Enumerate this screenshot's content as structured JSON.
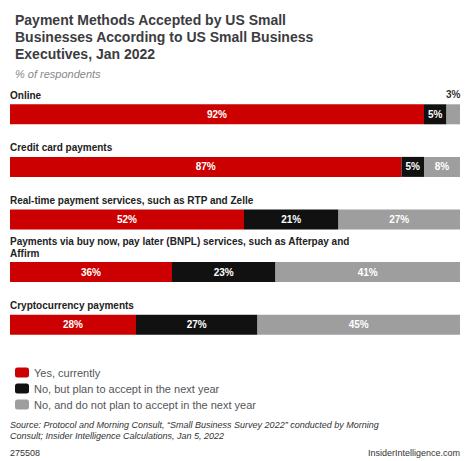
{
  "chart_data": {
    "type": "bar",
    "orientation": "horizontal",
    "stacked": true,
    "title": "Payment Methods Accepted by US Small\nBusinesses According to US Small Business\nExecutives, Jan 2022",
    "subtitle": "% of respondents",
    "categories": [
      "Online",
      "Credit card payments",
      "Real-time payment services, such as RTP and Zelle",
      "Payments via buy now, pay later (BNPL) services, such as Afterpay and\nAffirm",
      "Cryptocurrency payments"
    ],
    "series": [
      {
        "name": "Yes, currently",
        "color": "#cc0000",
        "values": [
          92,
          87,
          52,
          36,
          28
        ],
        "value_labels": [
          "92%",
          "87%",
          "52%",
          "36%",
          "28%"
        ]
      },
      {
        "name": "No, but plan to accept in the next year",
        "color": "#111111",
        "values": [
          5,
          5,
          21,
          23,
          27
        ],
        "value_labels": [
          "5%",
          "5%",
          "21%",
          "23%",
          "27%"
        ]
      },
      {
        "name": "No, and do not plan to accept in the next year",
        "color": "#9e9e9e",
        "values": [
          3,
          8,
          27,
          41,
          45
        ],
        "value_labels": [
          "3%",
          "8%",
          "27%",
          "41%",
          "45%"
        ]
      }
    ],
    "xlim": [
      0,
      100
    ],
    "tick_labels": "y",
    "grid": false,
    "legend": "bottom",
    "data_labels": true,
    "source": "Source: Protocol and Morning Consult, “Small Business Survey 2022” conducted by Morning\nConsult; Insider Intelligence Calculations, Jan 5, 2022",
    "annotations": [
      "275508",
      "InsiderIntelligence.com"
    ]
  }
}
